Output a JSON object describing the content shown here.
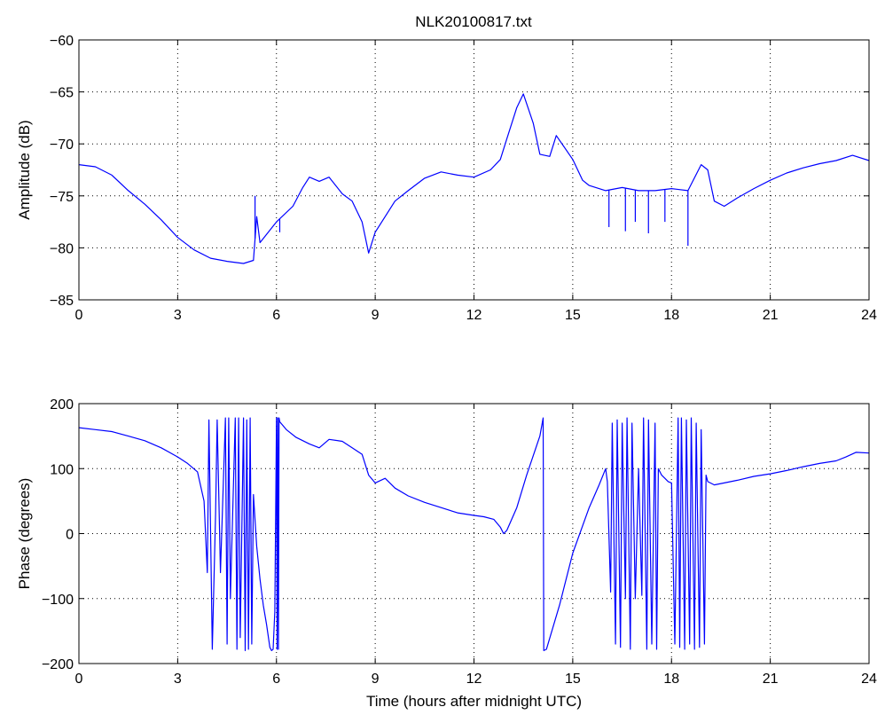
{
  "figure_title": "NLK20100817.txt",
  "chart_data": [
    {
      "type": "line",
      "title": "NLK20100817.txt",
      "xlabel": "",
      "ylabel": "Amplitude (dB)",
      "xlim": [
        0,
        24
      ],
      "ylim": [
        -85,
        -60
      ],
      "xticks": [
        "0",
        "3",
        "6",
        "9",
        "12",
        "15",
        "18",
        "21",
        "24"
      ],
      "yticks": [
        "−85",
        "−80",
        "−75",
        "−70",
        "−65",
        "−60"
      ],
      "grid": true,
      "line_color": "#0000ff",
      "x": [
        0,
        0.5,
        1.0,
        1.5,
        2.0,
        2.5,
        3.0,
        3.5,
        4.0,
        4.5,
        5.0,
        5.3,
        5.4,
        5.5,
        6.0,
        6.5,
        6.8,
        7.0,
        7.3,
        7.6,
        8.0,
        8.3,
        8.6,
        8.8,
        9.0,
        9.3,
        9.6,
        10.0,
        10.5,
        11.0,
        11.5,
        12.0,
        12.5,
        12.8,
        13.0,
        13.3,
        13.5,
        13.8,
        14.0,
        14.3,
        14.5,
        15.0,
        15.3,
        15.5,
        16.0,
        16.5,
        17.0,
        17.5,
        18.0,
        18.5,
        18.9,
        19.1,
        19.3,
        19.6,
        20.0,
        20.5,
        21.0,
        21.5,
        22.0,
        22.5,
        23.0,
        23.5,
        24.0
      ],
      "y": [
        -72.0,
        -72.2,
        -73.0,
        -74.5,
        -75.8,
        -77.3,
        -79.0,
        -80.2,
        -81.0,
        -81.3,
        -81.5,
        -81.2,
        -77.0,
        -79.5,
        -77.5,
        -76.0,
        -74.2,
        -73.2,
        -73.6,
        -73.2,
        -74.8,
        -75.5,
        -77.5,
        -80.5,
        -78.5,
        -77.0,
        -75.5,
        -74.5,
        -73.3,
        -72.7,
        -73.0,
        -73.2,
        -72.5,
        -71.5,
        -69.5,
        -66.5,
        -65.2,
        -68.0,
        -71.0,
        -71.2,
        -69.2,
        -71.5,
        -73.5,
        -74.0,
        -74.5,
        -74.2,
        -74.5,
        -74.5,
        -74.3,
        -74.5,
        -72.0,
        -72.5,
        -75.5,
        -76.0,
        -75.2,
        -74.3,
        -73.5,
        -72.8,
        -72.3,
        -71.9,
        -71.6,
        -71.1,
        -71.6
      ],
      "spikes": [
        [
          5.35,
          -75.0
        ],
        [
          6.1,
          -78.5
        ],
        [
          16.1,
          -78.0
        ],
        [
          16.6,
          -78.4
        ],
        [
          16.9,
          -77.5
        ],
        [
          17.3,
          -78.6
        ],
        [
          17.8,
          -77.5
        ],
        [
          18.5,
          -79.8
        ]
      ]
    },
    {
      "type": "line",
      "title": "",
      "xlabel": "Time (hours after midnight UTC)",
      "ylabel": "Phase (degrees)",
      "xlim": [
        0,
        24
      ],
      "ylim": [
        -200,
        200
      ],
      "xticks": [
        "0",
        "3",
        "6",
        "9",
        "12",
        "15",
        "18",
        "21",
        "24"
      ],
      "yticks": [
        "−200",
        "−100",
        "0",
        "100",
        "200"
      ],
      "grid": true,
      "line_color": "#0000ff",
      "x": [
        0,
        0.5,
        1.0,
        1.5,
        2.0,
        2.5,
        3.0,
        3.3,
        3.6,
        3.8,
        3.9,
        3.95,
        4.0,
        4.05,
        4.15,
        4.2,
        4.3,
        4.45,
        4.5,
        4.55,
        4.6,
        4.75,
        4.8,
        4.85,
        4.9,
        5.0,
        5.05,
        5.1,
        5.15,
        5.2,
        5.25,
        5.3,
        5.4,
        5.5,
        5.6,
        5.7,
        5.8,
        5.85,
        5.9,
        5.95,
        6.0,
        6.02,
        6.04,
        6.06,
        6.08,
        6.1,
        6.3,
        6.6,
        7.0,
        7.3,
        7.6,
        8.0,
        8.3,
        8.6,
        8.8,
        9.0,
        9.3,
        9.6,
        10.0,
        10.5,
        11.0,
        11.5,
        12.0,
        12.3,
        12.6,
        12.8,
        12.9,
        13.0,
        13.3,
        13.6,
        14.0,
        14.1,
        14.12,
        14.2,
        14.6,
        15.0,
        15.5,
        15.8,
        16.0,
        16.05,
        16.15,
        16.2,
        16.3,
        16.35,
        16.45,
        16.5,
        16.6,
        16.65,
        16.75,
        16.8,
        16.9,
        17.0,
        17.1,
        17.15,
        17.25,
        17.3,
        17.4,
        17.5,
        17.55,
        17.6,
        17.7,
        17.8,
        17.9,
        18.0,
        18.1,
        18.2,
        18.25,
        18.3,
        18.4,
        18.45,
        18.55,
        18.6,
        18.7,
        18.75,
        18.85,
        18.9,
        19.0,
        19.05,
        19.1,
        19.3,
        19.6,
        20.0,
        20.5,
        21.0,
        21.5,
        22.0,
        22.5,
        23.0,
        23.3,
        23.6,
        24.0
      ],
      "y": [
        163,
        160,
        157,
        150,
        143,
        132,
        118,
        108,
        95,
        50,
        -60,
        175,
        0,
        -178,
        30,
        175,
        -60,
        178,
        -170,
        178,
        -100,
        178,
        -178,
        178,
        -160,
        178,
        -180,
        175,
        -178,
        178,
        -170,
        60,
        -20,
        -70,
        -110,
        -140,
        -175,
        -180,
        -178,
        -120,
        178,
        -178,
        178,
        -178,
        178,
        172,
        160,
        148,
        138,
        132,
        145,
        142,
        132,
        122,
        90,
        78,
        85,
        70,
        58,
        48,
        40,
        32,
        28,
        26,
        22,
        10,
        0,
        5,
        40,
        90,
        150,
        178,
        -180,
        -178,
        -110,
        -30,
        40,
        75,
        100,
        80,
        -90,
        170,
        -170,
        175,
        -175,
        170,
        -100,
        178,
        -178,
        170,
        -100,
        100,
        -95,
        178,
        -178,
        175,
        -170,
        170,
        -178,
        100,
        90,
        85,
        80,
        78,
        -170,
        178,
        -175,
        178,
        -178,
        175,
        -170,
        178,
        -178,
        170,
        -175,
        160,
        -170,
        90,
        80,
        75,
        78,
        82,
        88,
        92,
        97,
        103,
        108,
        112,
        118,
        125,
        124
      ]
    }
  ]
}
